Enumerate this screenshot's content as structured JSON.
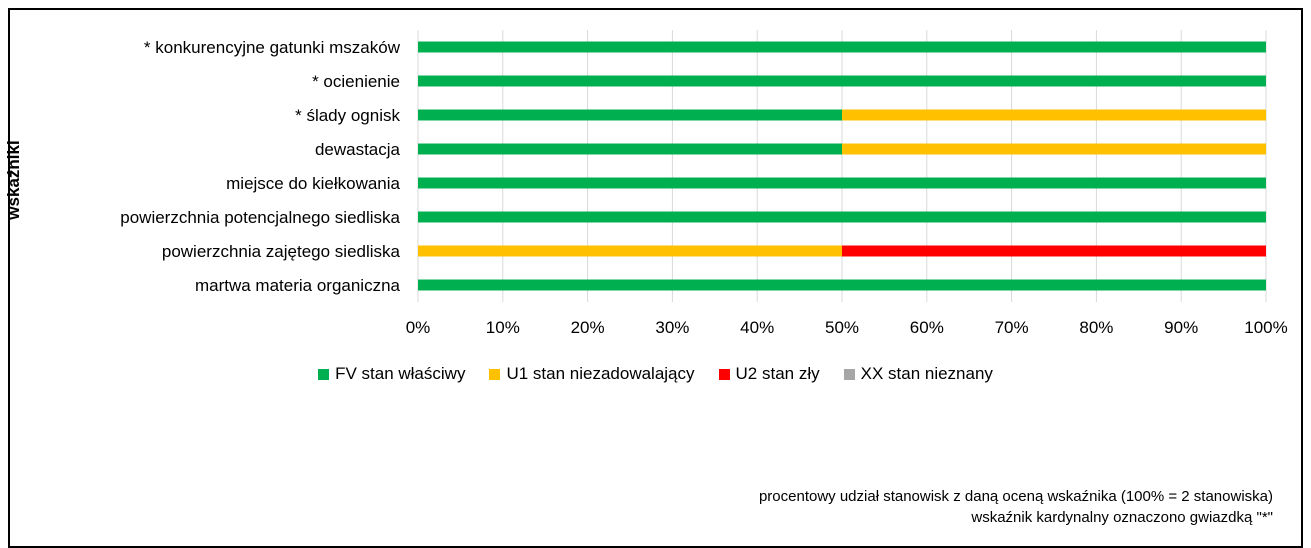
{
  "chart_data": {
    "type": "bar",
    "orientation": "horizontal",
    "stacked": "percent",
    "ylabel": "wskaźniki",
    "categories": [
      "* konkurencyjne gatunki mszaków",
      "* ocienienie",
      "* ślady ognisk",
      "dewastacja",
      "miejsce do kiełkowania",
      "powierzchnia potencjalnego siedliska",
      "powierzchnia zajętego siedliska",
      "martwa materia organiczna"
    ],
    "series": [
      {
        "name": "FV stan właściwy",
        "color": "#00B050",
        "values": [
          100,
          100,
          50,
          50,
          100,
          100,
          0,
          100
        ]
      },
      {
        "name": "U1 stan niezadowalający",
        "color": "#FFC000",
        "values": [
          0,
          0,
          50,
          50,
          0,
          0,
          50,
          0
        ]
      },
      {
        "name": "U2 stan zły",
        "color": "#FF0000",
        "values": [
          0,
          0,
          0,
          0,
          0,
          0,
          50,
          0
        ]
      },
      {
        "name": "XX stan nieznany",
        "color": "#A6A6A6",
        "values": [
          0,
          0,
          0,
          0,
          0,
          0,
          0,
          0
        ]
      }
    ],
    "xlim": [
      0,
      100
    ],
    "x_ticks": [
      "0%",
      "10%",
      "20%",
      "30%",
      "40%",
      "50%",
      "60%",
      "70%",
      "80%",
      "90%",
      "100%"
    ],
    "grid": "vertical",
    "legend_position": "bottom"
  },
  "notes": {
    "line1": "procentowy udział stanowisk z daną oceną wskaźnika (100% = 2 stanowiska)",
    "line2": "wskaźnik kardynalny oznaczono gwiazdką \"*\""
  }
}
